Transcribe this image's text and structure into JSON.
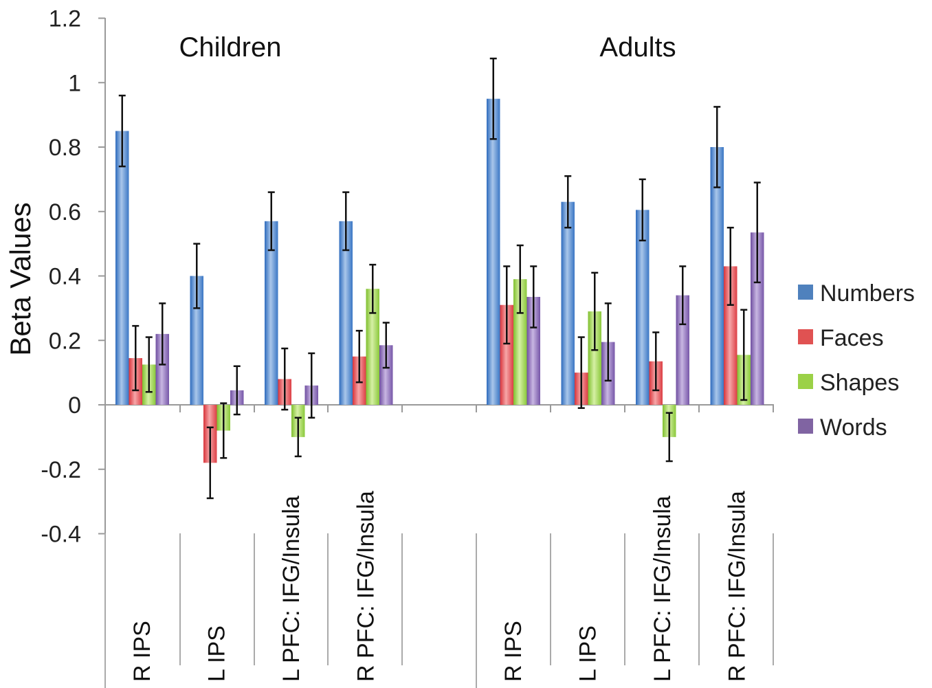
{
  "chart_data": {
    "type": "bar",
    "ylabel": "Beta Values",
    "ylim": [
      -0.4,
      1.2
    ],
    "yticks": [
      "1.2",
      "1",
      "0.8",
      "0.6",
      "0.4",
      "0.2",
      "0",
      "-0.2",
      "-0.4"
    ],
    "legend_position": "right",
    "groups": [
      {
        "title": "Children",
        "categories": [
          "R IPS",
          "L IPS",
          "L PFC: IFG/Insula",
          "R PFC: IFG/Insula"
        ],
        "series": [
          {
            "name": "Numbers",
            "values": [
              0.85,
              0.4,
              0.57,
              0.57
            ],
            "errors": [
              0.11,
              0.1,
              0.09,
              0.09
            ]
          },
          {
            "name": "Faces",
            "values": [
              0.145,
              -0.18,
              0.08,
              0.15
            ],
            "errors": [
              0.1,
              0.11,
              0.095,
              0.08
            ]
          },
          {
            "name": "Shapes",
            "values": [
              0.125,
              -0.08,
              -0.1,
              0.36
            ],
            "errors": [
              0.085,
              0.085,
              0.06,
              0.075
            ]
          },
          {
            "name": "Words",
            "values": [
              0.22,
              0.045,
              0.06,
              0.185
            ],
            "errors": [
              0.095,
              0.075,
              0.1,
              0.07
            ]
          }
        ]
      },
      {
        "title": "Adults",
        "categories": [
          "R IPS",
          "L IPS",
          "L PFC: IFG/Insula",
          "R PFC: IFG/Insula"
        ],
        "series": [
          {
            "name": "Numbers",
            "values": [
              0.95,
              0.63,
              0.605,
              0.8
            ],
            "errors": [
              0.125,
              0.08,
              0.095,
              0.125
            ]
          },
          {
            "name": "Faces",
            "values": [
              0.31,
              0.1,
              0.135,
              0.43
            ],
            "errors": [
              0.12,
              0.11,
              0.09,
              0.12
            ]
          },
          {
            "name": "Shapes",
            "values": [
              0.39,
              0.29,
              -0.1,
              0.155
            ],
            "errors": [
              0.105,
              0.12,
              0.075,
              0.14
            ]
          },
          {
            "name": "Words",
            "values": [
              0.335,
              0.195,
              0.34,
              0.535
            ],
            "errors": [
              0.095,
              0.12,
              0.09,
              0.155
            ]
          }
        ]
      }
    ],
    "colors": {
      "Numbers": "#4f81bd",
      "Faces": "#e05252",
      "Shapes": "#9bd147",
      "Words": "#8064a2"
    }
  }
}
